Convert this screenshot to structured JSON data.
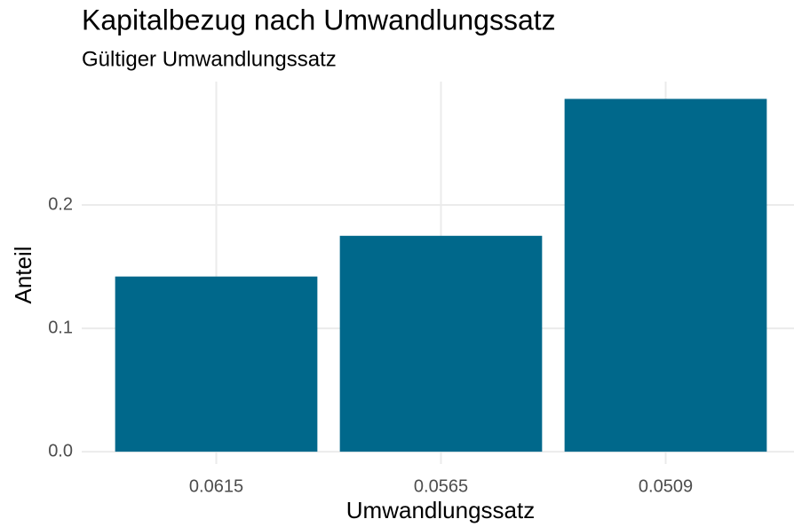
{
  "chart_data": {
    "type": "bar",
    "title": "Kapitalbezug nach Umwandlungssatz",
    "subtitle": "Gültiger Umwandlungssatz",
    "x_label": "Umwandlungssatz",
    "y_label": "Anteil",
    "categories": [
      "0.0615",
      "0.0565",
      "0.0509"
    ],
    "values": [
      0.142,
      0.175,
      0.286
    ],
    "color": "#00688b",
    "ylim": [
      -0.01,
      0.3
    ],
    "yticks": [
      {
        "value": 0,
        "label": "0.0"
      },
      0.1,
      0.2
    ],
    "grid": true
  }
}
